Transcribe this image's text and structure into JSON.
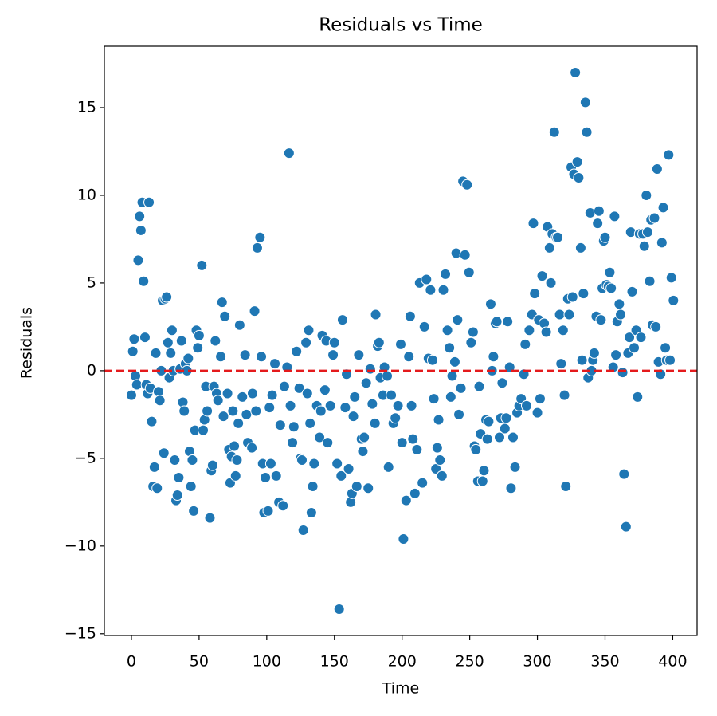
{
  "chart_data": {
    "type": "scatter",
    "title": "Residuals vs Time",
    "x_label": "Time",
    "y_label": "Residuals",
    "xlim": [
      -20,
      418
    ],
    "ylim": [
      -15.1,
      18.5
    ],
    "xticks": [
      0,
      50,
      100,
      150,
      200,
      250,
      300,
      350,
      400
    ],
    "yticks": [
      {
        "value": -15,
        "label": "−15"
      },
      {
        "value": -10,
        "label": "−10"
      },
      {
        "value": -5,
        "label": "−5"
      },
      0,
      5,
      10,
      15
    ],
    "reference_line": {
      "y": 0,
      "color": "#e41a1c"
    },
    "series": [
      {
        "color": "#1f77b4",
        "x": [
          0,
          1,
          2,
          3,
          4,
          5,
          6,
          7,
          8,
          9,
          10,
          11,
          12,
          13,
          14,
          15,
          16,
          17,
          18,
          19,
          20,
          21,
          22,
          23,
          24,
          25,
          26,
          27,
          28,
          29,
          30,
          31,
          32,
          33,
          34,
          35,
          36,
          37,
          38,
          39,
          40,
          41,
          42,
          43,
          44,
          45,
          46,
          47,
          48,
          49,
          50,
          52,
          53,
          54,
          55,
          56,
          58,
          59,
          60,
          61,
          62,
          63,
          64,
          66,
          67,
          68,
          69,
          71,
          72,
          73,
          74,
          75,
          76,
          77,
          78,
          79,
          80,
          82,
          84,
          85,
          86,
          89,
          89.5,
          91,
          92,
          93,
          95,
          96,
          97,
          98,
          99,
          101,
          102,
          103,
          104,
          106,
          107,
          109,
          110,
          112,
          113,
          115,
          116.5,
          117.5,
          119,
          120,
          122,
          124,
          125,
          126,
          127,
          129,
          130,
          131,
          132,
          133,
          134,
          135,
          137,
          139,
          140,
          141,
          143,
          144,
          145,
          147,
          149,
          150,
          152,
          153.5,
          155,
          156,
          158,
          159,
          160.5,
          162,
          163,
          164,
          165,
          166.5,
          168,
          170,
          171,
          172,
          173.5,
          175,
          176.5,
          178,
          180,
          180.5,
          182,
          183,
          184,
          186,
          187,
          189,
          190,
          192,
          193.5,
          195,
          197,
          199,
          200,
          201,
          203,
          205,
          206,
          207,
          208,
          209.5,
          211,
          213,
          215,
          216.5,
          218,
          219.5,
          221,
          222.5,
          223.5,
          225,
          226,
          227,
          228,
          229.5,
          230.5,
          232,
          233.5,
          235,
          236,
          237,
          239,
          240,
          241,
          242,
          243.5,
          245,
          246.5,
          248,
          249.5,
          251,
          252.5,
          253.5,
          254.5,
          256,
          257,
          258,
          259.5,
          260.5,
          262,
          263,
          264,
          265.5,
          266.5,
          267.5,
          269,
          270,
          272,
          273,
          274,
          276,
          277,
          278,
          279.5,
          280.5,
          282,
          283.5,
          285,
          286.5,
          288,
          290,
          291,
          292,
          294,
          296,
          297,
          298,
          300,
          301,
          302,
          303.5,
          305,
          306.5,
          307.5,
          309,
          310,
          311,
          312.5,
          314,
          315,
          316.5,
          317.5,
          319,
          320,
          321,
          322.5,
          323.5,
          325,
          326,
          327,
          328,
          329.5,
          330.5,
          332,
          333,
          334,
          335.5,
          336.5,
          337.5,
          339,
          340,
          341,
          342,
          343.5,
          344.5,
          345.5,
          347,
          348,
          349,
          350,
          351,
          352.5,
          353.5,
          354.5,
          356,
          357,
          358,
          359,
          360.5,
          361.5,
          363,
          364,
          365.5,
          367,
          368,
          369,
          370,
          371.5,
          373,
          374,
          375.5,
          376.5,
          378,
          379,
          380.5,
          381.5,
          383,
          384,
          385,
          386.5,
          387.5,
          388.5,
          389.5,
          391,
          392,
          393,
          394.5,
          395.5,
          397,
          398,
          399,
          400.5
        ],
        "values": [
          -1.4,
          1.1,
          1.8,
          -0.3,
          -0.8,
          6.3,
          8.8,
          8.0,
          9.6,
          5.1,
          1.9,
          -0.8,
          -1.3,
          9.6,
          -1.0,
          -2.9,
          -6.6,
          -5.5,
          1.0,
          -6.7,
          -1.2,
          -1.7,
          0.0,
          4.0,
          -4.7,
          4.1,
          4.2,
          1.6,
          -0.4,
          1.0,
          2.3,
          0,
          -5.1,
          -7.4,
          -7.1,
          -6.1,
          0.1,
          1.7,
          -1.8,
          -2.3,
          0.4,
          0,
          0.7,
          -4.6,
          -6.6,
          -5.1,
          -8.0,
          -3.4,
          2.3,
          1.3,
          2.0,
          6.0,
          -3.4,
          -2.8,
          -0.9,
          -2.3,
          -8.4,
          -5.7,
          -5.4,
          -0.9,
          1.7,
          -1.3,
          -1.7,
          0.8,
          3.9,
          -2.6,
          3.1,
          -1.3,
          -4.5,
          -6.4,
          -4.9,
          -2.3,
          -4.3,
          -6.0,
          -5.1,
          -3.0,
          2.6,
          -1.5,
          0.9,
          -2.5,
          -4.1,
          -4.4,
          -1.3,
          3.4,
          -2.3,
          7.0,
          7.6,
          0.8,
          -5.3,
          -8.1,
          -6.1,
          -8.0,
          -2.1,
          -5.3,
          -1.4,
          0.4,
          -6.0,
          -7.5,
          -3.1,
          -7.7,
          -0.9,
          0.2,
          12.4,
          -2.0,
          -4.1,
          -3.2,
          1.1,
          -1.0,
          -5.0,
          -5.1,
          -9.1,
          1.6,
          -1.3,
          2.3,
          -3.0,
          -8.1,
          -6.6,
          -5.3,
          -2.0,
          -3.8,
          -2.3,
          2.0,
          -1.1,
          1.7,
          -4.1,
          -2.0,
          0.9,
          1.6,
          -5.3,
          -13.6,
          -6.0,
          2.9,
          -2.1,
          -0.2,
          -5.6,
          -7.5,
          -7.0,
          -2.6,
          -1.5,
          -6.6,
          0.9,
          -3.9,
          -4.6,
          -3.8,
          -0.7,
          -6.7,
          0.1,
          -1.9,
          -3.0,
          3.2,
          1.4,
          1.6,
          -0.4,
          -1.4,
          0.2,
          -0.3,
          -5.5,
          -1.4,
          -3.0,
          -2.7,
          -2.0,
          1.5,
          -4.1,
          -9.6,
          -7.4,
          0.8,
          3.1,
          -2.0,
          -3.9,
          -7.0,
          -4.5,
          5.0,
          -6.4,
          2.5,
          5.2,
          0.7,
          4.6,
          0.6,
          -1.6,
          -5.6,
          -4.4,
          -2.8,
          -5.1,
          -6.0,
          4.6,
          5.5,
          2.3,
          1.3,
          -1.5,
          -0.3,
          0.5,
          6.7,
          2.9,
          -2.5,
          -1.0,
          10.8,
          6.6,
          10.6,
          5.6,
          1.6,
          2.2,
          -4.3,
          -4.5,
          -6.3,
          -0.9,
          -3.6,
          -6.3,
          -5.7,
          -2.8,
          -3.9,
          -2.9,
          3.8,
          0,
          0.8,
          2.7,
          2.8,
          -3.8,
          -2.7,
          -0.7,
          -3.3,
          -2.7,
          2.8,
          0.2,
          -6.7,
          -3.8,
          -5.5,
          -2.4,
          -2.0,
          -1.6,
          -0.2,
          1.5,
          -2.0,
          2.3,
          3.2,
          8.4,
          4.4,
          -2.4,
          2.9,
          -1.6,
          5.4,
          2.7,
          2.2,
          8.2,
          7.0,
          5.0,
          7.8,
          13.6,
          7.6,
          7.6,
          3.2,
          0.4,
          2.3,
          -1.4,
          -6.6,
          4.1,
          3.2,
          11.6,
          4.2,
          11.2,
          17.0,
          11.9,
          11.0,
          7.0,
          0.6,
          4.4,
          15.3,
          13.6,
          -0.4,
          9.0,
          0,
          0.6,
          1.0,
          3.1,
          8.4,
          9.1,
          2.9,
          4.7,
          7.4,
          7.6,
          4.9,
          4.8,
          5.6,
          4.7,
          0.2,
          8.8,
          0.9,
          2.8,
          3.8,
          3.2,
          -0.1,
          -5.9,
          -8.9,
          1.0,
          1.9,
          7.9,
          4.5,
          1.3,
          2.3,
          -1.5,
          7.8,
          1.9,
          7.8,
          7.1,
          10.0,
          7.9,
          5.1,
          8.6,
          2.6,
          8.7,
          2.5,
          11.5,
          0.5,
          -0.2,
          7.3,
          9.3,
          1.3,
          0.6,
          12.3,
          0.6,
          5.3,
          4.0
        ]
      }
    ]
  }
}
